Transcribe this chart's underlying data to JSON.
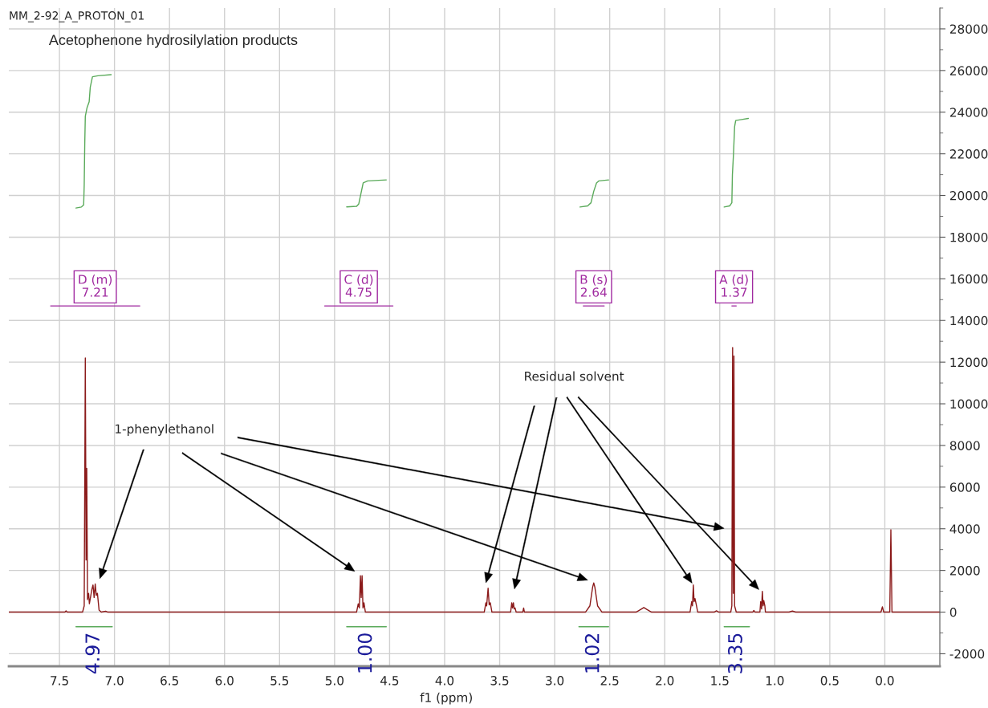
{
  "chart_data": {
    "type": "line",
    "title": "MM_2-92_A_PROTON_01",
    "subtitle": "Acetophenone hydrosilylation products",
    "xlabel": "f1 (ppm)",
    "xlim": [
      7.96,
      -0.5
    ],
    "xticks": [
      {
        "value": 7.5,
        "label": "7.5"
      },
      {
        "value": 7.0,
        "label": "7.0"
      },
      {
        "value": 6.5,
        "label": "6.5"
      },
      {
        "value": 6.0,
        "label": "6.0"
      },
      {
        "value": 5.5,
        "label": "5.5"
      },
      {
        "value": 5.0,
        "label": "5.0"
      },
      {
        "value": 4.5,
        "label": "4.5"
      },
      {
        "value": 4.0,
        "label": "4.0"
      },
      {
        "value": 3.5,
        "label": "3.5"
      },
      {
        "value": 3.0,
        "label": "3.0"
      },
      {
        "value": 2.5,
        "label": "2.5"
      },
      {
        "value": 2.0,
        "label": "2.0"
      },
      {
        "value": 1.5,
        "label": "1.5"
      },
      {
        "value": 1.0,
        "label": "1.0"
      },
      {
        "value": 0.5,
        "label": "0.5"
      },
      {
        "value": 0.0,
        "label": "0.0"
      }
    ],
    "ylim": [
      -2600,
      29000
    ],
    "yticks": [
      -2000,
      0,
      2000,
      4000,
      6000,
      8000,
      10000,
      12000,
      14000,
      16000,
      18000,
      20000,
      22000,
      24000,
      26000,
      28000
    ],
    "grid": true,
    "legend": false,
    "marker": "none",
    "line_style": "solid",
    "series": [
      {
        "color": "#8b1a1a",
        "x": [
          7.96,
          7.45,
          7.44,
          7.43,
          7.29,
          7.275,
          7.265,
          7.258,
          7.252,
          7.245,
          7.235,
          7.228,
          7.205,
          7.195,
          7.185,
          7.175,
          7.165,
          7.155,
          7.14,
          7.12,
          7.08,
          7.06,
          4.8,
          4.785,
          4.775,
          4.765,
          4.758,
          4.75,
          4.742,
          4.733,
          4.72,
          3.64,
          3.625,
          3.618,
          3.605,
          3.595,
          3.585,
          3.57,
          3.4,
          3.39,
          3.383,
          3.375,
          3.368,
          3.36,
          3.35,
          3.29,
          3.282,
          3.275,
          2.72,
          2.68,
          2.655,
          2.645,
          2.635,
          2.61,
          2.57,
          2.26,
          2.22,
          2.19,
          2.16,
          2.12,
          1.77,
          1.755,
          1.748,
          1.74,
          1.733,
          1.725,
          1.715,
          1.7,
          1.55,
          1.53,
          1.51,
          1.4,
          1.39,
          1.383,
          1.377,
          1.371,
          1.365,
          1.35,
          1.2,
          1.19,
          1.18,
          1.135,
          1.128,
          1.12,
          1.113,
          1.106,
          1.1,
          1.09,
          1.085,
          0.87,
          0.84,
          0.81,
          0.035,
          0.022,
          0.01,
          -0.045,
          -0.055,
          -0.065,
          -0.5
        ],
        "values": [
          0,
          0,
          60,
          0,
          0,
          300,
          12200,
          2500,
          6900,
          600,
          900,
          400,
          1100,
          1300,
          700,
          1350,
          800,
          900,
          100,
          0,
          40,
          0,
          0,
          400,
          200,
          1750,
          700,
          1750,
          200,
          450,
          0,
          0,
          450,
          300,
          1150,
          350,
          450,
          0,
          0,
          450,
          200,
          450,
          150,
          200,
          0,
          0,
          200,
          0,
          0,
          300,
          1200,
          1400,
          1200,
          300,
          0,
          0,
          120,
          220,
          120,
          0,
          0,
          500,
          300,
          1300,
          500,
          650,
          400,
          0,
          0,
          60,
          0,
          0,
          300,
          12700,
          900,
          12300,
          300,
          0,
          0,
          80,
          0,
          0,
          500,
          150,
          1000,
          300,
          550,
          300,
          0,
          0,
          50,
          0,
          0,
          250,
          0,
          0,
          3950,
          0,
          0
        ]
      },
      {
        "color": "#5aaa5a",
        "x": [
          7.35,
          7.3,
          7.28,
          7.275,
          7.27,
          7.265,
          7.25,
          7.23,
          7.22,
          7.2,
          7.15,
          7.03
        ],
        "values": [
          19400,
          19450,
          19550,
          20500,
          22500,
          23800,
          24200,
          24500,
          25200,
          25700,
          25750,
          25800
        ]
      },
      {
        "color": "#5aaa5a",
        "x": [
          4.89,
          4.8,
          4.78,
          4.76,
          4.74,
          4.7,
          4.53
        ],
        "values": [
          19450,
          19480,
          19600,
          20100,
          20600,
          20700,
          20750
        ]
      },
      {
        "color": "#5aaa5a",
        "x": [
          2.77,
          2.7,
          2.67,
          2.645,
          2.62,
          2.6,
          2.51
        ],
        "values": [
          19450,
          19500,
          19650,
          20200,
          20600,
          20700,
          20750
        ]
      },
      {
        "color": "#5aaa5a",
        "x": [
          1.46,
          1.41,
          1.39,
          1.385,
          1.375,
          1.365,
          1.355,
          1.3,
          1.24
        ],
        "values": [
          19450,
          19500,
          19650,
          21000,
          22000,
          23300,
          23600,
          23650,
          23700
        ]
      },
      {
        "color": "#5aaa5a",
        "x": [
          7.35,
          7.02
        ],
        "values": [
          -700,
          -700
        ]
      },
      {
        "color": "#5aaa5a",
        "x": [
          4.89,
          4.53
        ],
        "values": [
          -700,
          -700
        ]
      },
      {
        "color": "#5aaa5a",
        "x": [
          2.78,
          2.51
        ],
        "values": [
          -700,
          -700
        ]
      },
      {
        "color": "#5aaa5a",
        "x": [
          1.46,
          1.23
        ],
        "values": [
          -700,
          -700
        ]
      },
      {
        "color": "#a02aa0",
        "x": [
          7.58,
          6.77
        ],
        "values": [
          14700,
          14700
        ]
      },
      {
        "color": "#a02aa0",
        "x": [
          5.09,
          4.47
        ],
        "values": [
          14700,
          14700
        ]
      },
      {
        "color": "#a02aa0",
        "x": [
          2.74,
          2.55
        ],
        "values": [
          14700,
          14700
        ]
      },
      {
        "color": "#a02aa0",
        "x": [
          1.39,
          1.35
        ],
        "values": [
          14700,
          14700
        ]
      }
    ],
    "annotations": [
      "1-phenylethanol",
      "Residual solvent",
      {
        "text": "4.97",
        "x": 7.185,
        "y": -700
      },
      {
        "text": "1.00",
        "x": 4.71,
        "y": -700
      },
      {
        "text": "1.02",
        "x": 2.645,
        "y": -700
      },
      {
        "text": "3.35",
        "x": 1.345,
        "y": -700
      },
      {
        "text": "D (m)\n7.21",
        "x": 7.175,
        "y": 14700
      },
      {
        "text": "C (d)\n4.75",
        "x": 4.78,
        "y": 14700
      },
      {
        "text": "B (s)\n2.64",
        "x": 2.645,
        "y": 14700
      },
      {
        "text": "A (d)\n1.37",
        "x": 1.37,
        "y": 14700
      }
    ]
  }
}
